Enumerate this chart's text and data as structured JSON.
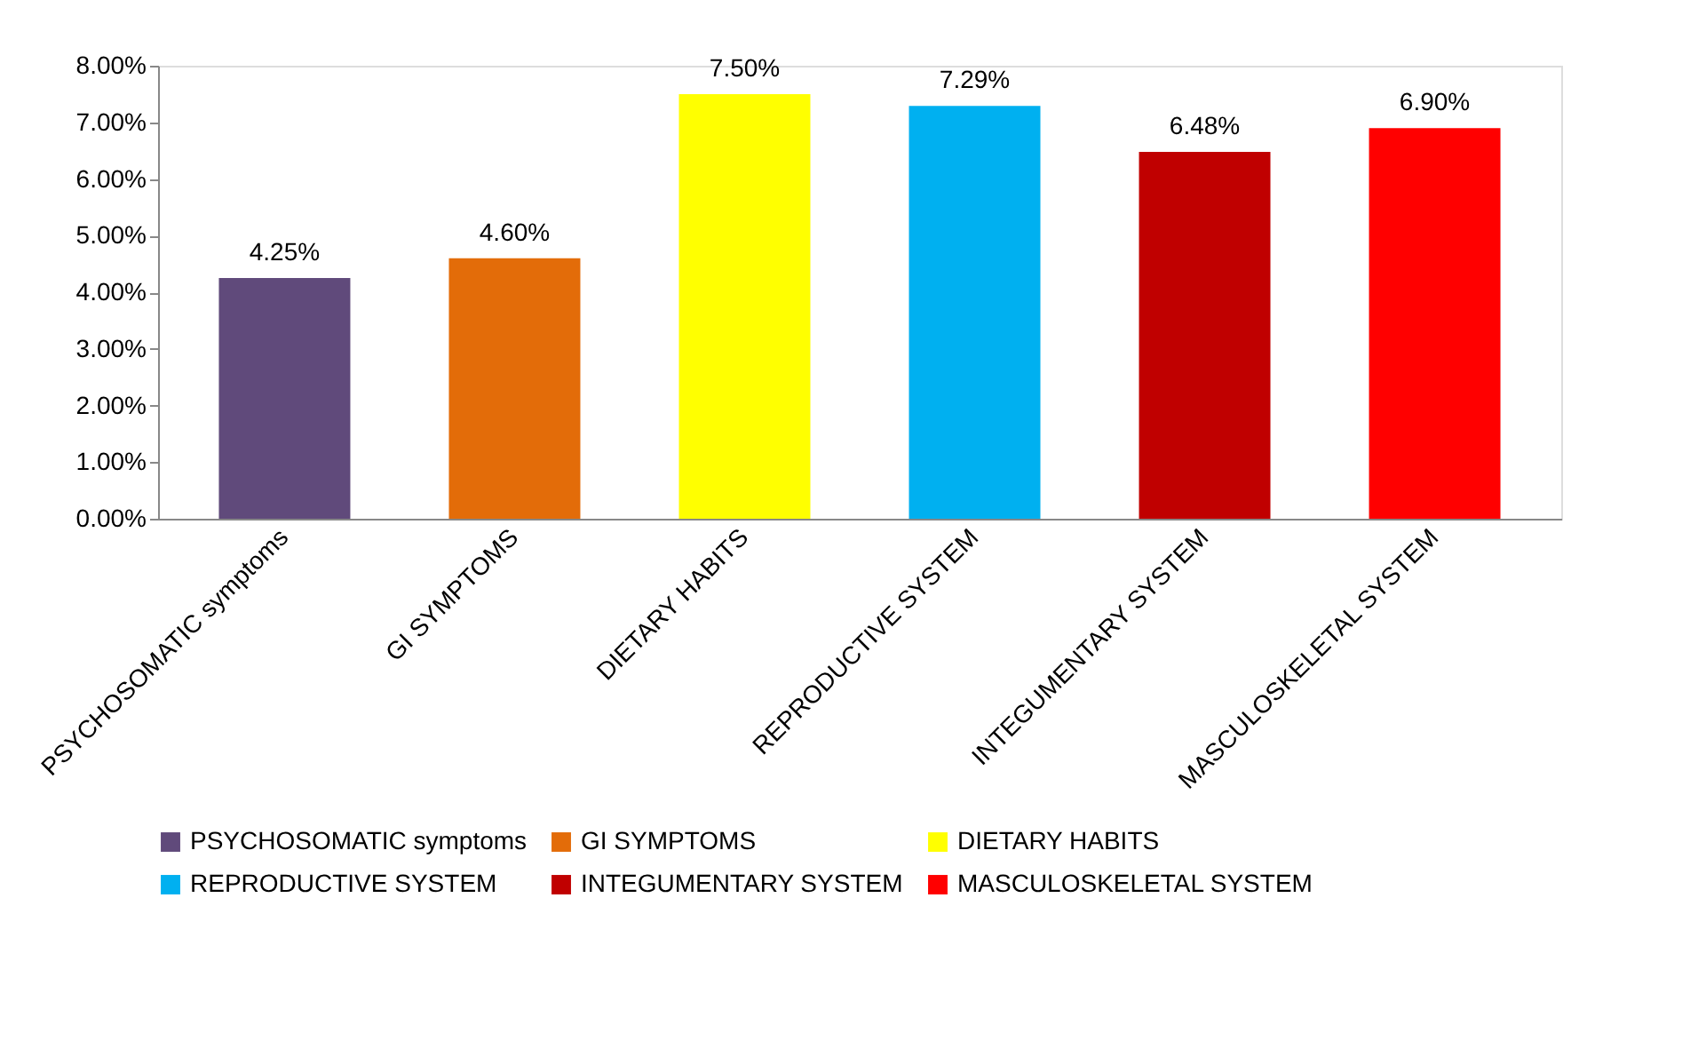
{
  "chart_data": {
    "type": "bar",
    "categories": [
      "PSYCHOSOMATIC symptoms",
      "GI SYMPTOMS",
      "DIETARY HABITS",
      "REPRODUCTIVE SYSTEM",
      "INTEGUMENTARY SYSTEM",
      "MASCULOSKELETAL SYSTEM"
    ],
    "series": [
      {
        "name": "PSYCHOSOMATIC symptoms",
        "color": "#604a7b",
        "values": [
          4.25,
          null,
          null,
          null,
          null,
          null
        ],
        "value_labels": [
          "4.25%",
          null,
          null,
          null,
          null,
          null
        ]
      },
      {
        "name": "GI SYMPTOMS",
        "color": "#e36c09",
        "values": [
          null,
          4.6,
          null,
          null,
          null,
          null
        ],
        "value_labels": [
          null,
          "4.60%",
          null,
          null,
          null,
          null
        ]
      },
      {
        "name": "DIETARY HABITS",
        "color": "#ffff00",
        "values": [
          null,
          null,
          7.5,
          null,
          null,
          null
        ],
        "value_labels": [
          null,
          null,
          "7.50%",
          null,
          null,
          null
        ]
      },
      {
        "name": "REPRODUCTIVE SYSTEM",
        "color": "#00b0f0",
        "values": [
          null,
          null,
          null,
          7.29,
          null,
          null
        ],
        "value_labels": [
          null,
          null,
          null,
          "7.29%",
          null,
          null
        ]
      },
      {
        "name": "INTEGUMENTARY SYSTEM",
        "color": "#c00000",
        "values": [
          null,
          null,
          null,
          null,
          6.48,
          null
        ],
        "value_labels": [
          null,
          null,
          null,
          null,
          "6.48%",
          null
        ]
      },
      {
        "name": "MASCULOSKELETAL SYSTEM",
        "color": "#ff0000",
        "values": [
          null,
          null,
          null,
          null,
          null,
          6.9
        ],
        "value_labels": [
          null,
          null,
          null,
          null,
          null,
          "6.90%"
        ]
      }
    ],
    "ylim": [
      0,
      8
    ],
    "yticks": [
      {
        "value": 0,
        "label": "0.00%"
      },
      {
        "value": 1,
        "label": "1.00%"
      },
      {
        "value": 2,
        "label": "2.00%"
      },
      {
        "value": 3,
        "label": "3.00%"
      },
      {
        "value": 4,
        "label": "4.00%"
      },
      {
        "value": 5,
        "label": "5.00%"
      },
      {
        "value": 6,
        "label": "6.00%"
      },
      {
        "value": 7,
        "label": "7.00%"
      },
      {
        "value": 8,
        "label": "8.00%"
      }
    ],
    "grid": false,
    "legend": "bottom"
  }
}
